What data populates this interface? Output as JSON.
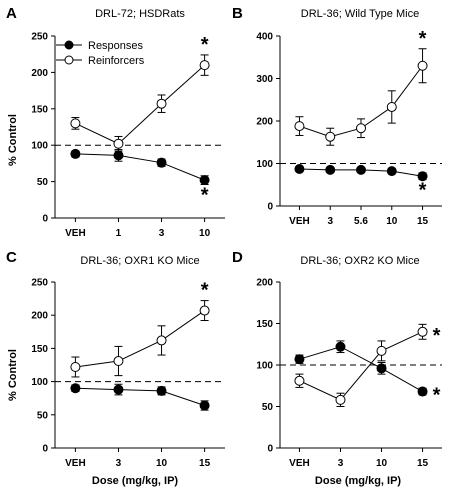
{
  "figure": {
    "ylabel": "% Control",
    "xlabel": "Dose (mg/kg, IP)"
  },
  "legend": {
    "responses": "Responses",
    "reinforcers": "Reinforcers"
  },
  "colors": {
    "responses": "#000000",
    "reinforcers": "#ffffff",
    "reference_line": "#000000"
  },
  "chart_data": [
    {
      "panel": "A",
      "type": "line",
      "title": "DRL-72; HSDRats",
      "categories": [
        "VEH",
        "1",
        "3",
        "10"
      ],
      "ylim": [
        0,
        250
      ],
      "yticks": [
        0,
        50,
        100,
        150,
        200,
        250
      ],
      "reference_line": 100,
      "legend": true,
      "series": [
        {
          "name": "Responses",
          "values": [
            88,
            86,
            76,
            52
          ],
          "errors": [
            4,
            8,
            5,
            6
          ]
        },
        {
          "name": "Reinforcers",
          "values": [
            130,
            102,
            157,
            210
          ],
          "errors": [
            8,
            10,
            12,
            14
          ]
        }
      ],
      "asterisks": [
        {
          "series": "Reinforcers",
          "index": 3
        },
        {
          "series": "Responses",
          "index": 3
        }
      ]
    },
    {
      "panel": "B",
      "type": "line",
      "title": "DRL-36; Wild Type Mice",
      "categories": [
        "VEH",
        "3",
        "5.6",
        "10",
        "15"
      ],
      "ylim": [
        0,
        400
      ],
      "yticks": [
        0,
        100,
        200,
        300,
        400
      ],
      "reference_line": 100,
      "legend": false,
      "series": [
        {
          "name": "Responses",
          "values": [
            87,
            85,
            85,
            82,
            70
          ],
          "errors": [
            5,
            4,
            4,
            5,
            8
          ]
        },
        {
          "name": "Reinforcers",
          "values": [
            188,
            163,
            183,
            233,
            330
          ],
          "errors": [
            22,
            20,
            22,
            38,
            40
          ]
        }
      ],
      "asterisks": [
        {
          "series": "Reinforcers",
          "index": 4
        },
        {
          "series": "Responses",
          "index": 4
        }
      ]
    },
    {
      "panel": "C",
      "type": "line",
      "title": "DRL-36; OXR1 KO Mice",
      "categories": [
        "VEH",
        "3",
        "10",
        "15"
      ],
      "ylim": [
        0,
        250
      ],
      "yticks": [
        0,
        50,
        100,
        150,
        200,
        250
      ],
      "reference_line": 100,
      "legend": false,
      "series": [
        {
          "name": "Responses",
          "values": [
            90,
            88,
            86,
            64
          ],
          "errors": [
            5,
            8,
            6,
            7
          ]
        },
        {
          "name": "Reinforcers",
          "values": [
            122,
            131,
            162,
            207
          ],
          "errors": [
            15,
            22,
            22,
            15
          ]
        }
      ],
      "asterisks": [
        {
          "series": "Reinforcers",
          "index": 3
        }
      ]
    },
    {
      "panel": "D",
      "type": "line",
      "title": "DRL-36; OXR2 KO Mice",
      "categories": [
        "VEH",
        "3",
        "10",
        "15"
      ],
      "ylim": [
        0,
        200
      ],
      "yticks": [
        0,
        50,
        100,
        150,
        200
      ],
      "reference_line": 100,
      "legend": false,
      "series": [
        {
          "name": "Responses",
          "values": [
            107,
            122,
            96,
            68
          ],
          "errors": [
            5,
            7,
            7,
            4
          ]
        },
        {
          "name": "Reinforcers",
          "values": [
            81,
            58,
            117,
            140
          ],
          "errors": [
            8,
            8,
            12,
            9
          ]
        }
      ],
      "asterisks": [
        {
          "series": "Reinforcers",
          "index": 3
        },
        {
          "series": "Responses",
          "index": 3
        }
      ]
    }
  ]
}
